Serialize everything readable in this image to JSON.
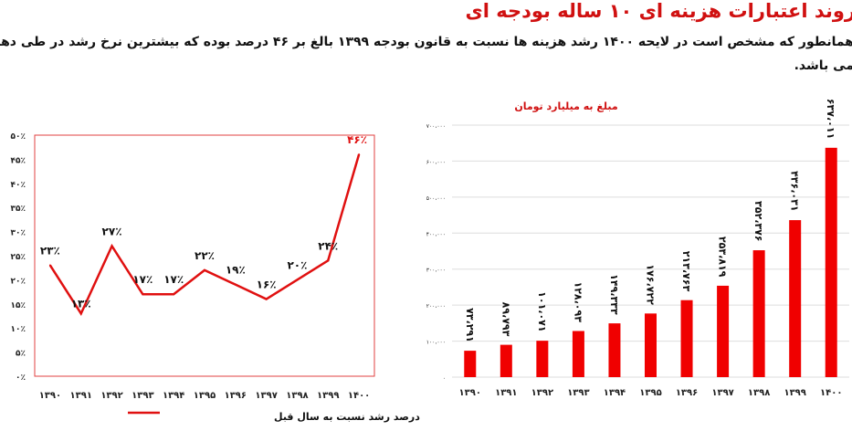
{
  "title": "روند اعتبارات هزینه ای ۱۰ ساله بودجه ای",
  "paragraph": [
    "همانطور که مشخص است در لایحه ۱۴۰۰ رشد هزینه ها نسبت به قانون بودجه ۱۳۹۹ بالغ بر ۴۶ درصد بوده که بیشترین نرخ رشد در طی دهه اخیر",
    "می باشد."
  ],
  "chart_data": [
    {
      "type": "line",
      "legend": "درصد رشد نسبت به سال قبل",
      "legend_position": "bottom",
      "categories": [
        "۱۳۹۰",
        "۱۳۹۱",
        "۱۳۹۲",
        "۱۳۹۳",
        "۱۳۹۴",
        "۱۳۹۵",
        "۱۳۹۶",
        "۱۳۹۷",
        "۱۳۹۸",
        "۱۳۹۹",
        "۱۴۰۰"
      ],
      "values": [
        23,
        13,
        27,
        17,
        17,
        22,
        19,
        16,
        20,
        24,
        46
      ],
      "data_labels": [
        "۲۳٪",
        "۱۳٪",
        "۲۷٪",
        "۱۷٪",
        "۱۷٪",
        "۲۲٪",
        "۱۹٪",
        "۱۶٪",
        "۲۰٪",
        "۲۴٪",
        "۴۶٪"
      ],
      "ylim": [
        0,
        50
      ],
      "yticks": [
        "۰٪",
        "۵٪",
        "۱۰٪",
        "۱۵٪",
        "۲۰٪",
        "۲۵٪",
        "۳۰٪",
        "۳۵٪",
        "۴۰٪",
        "۴۵٪",
        "۵۰٪"
      ],
      "color": "#e01010",
      "grid": false
    },
    {
      "type": "bar",
      "title": "مبلغ به میلیارد تومان",
      "categories": [
        "۱۳۹۰",
        "۱۳۹۱",
        "۱۳۹۲",
        "۱۳۹۳",
        "۱۳۹۴",
        "۱۳۹۵",
        "۱۳۹۶",
        "۱۳۹۷",
        "۱۳۹۸",
        "۱۳۹۹",
        "۱۴۰۰"
      ],
      "values": [
        73291,
        89793,
        101071,
        128093,
        149333,
        176722,
        213763,
        253819,
        352376,
        436031,
        637011
      ],
      "data_labels": [
        "۷۳،۲۹۱",
        "۸۹،۷۹۳",
        "۱۰۱،۰۷۱",
        "۱۲۸،۰۹۳",
        "۱۴۹،۳۳۳",
        "۱۷۶،۷۲۲",
        "۲۱۳،۷۶۳",
        "۲۵۳،۸۱۹",
        "۳۵۲،۳۷۶",
        "۴۳۶،۰۳۱",
        "۶۳۷،۰۱۱"
      ],
      "ylim": [
        0,
        700000
      ],
      "yticks": [
        "۰",
        "۱۰۰،۰۰۰",
        "۲۰۰،۰۰۰",
        "۳۰۰،۰۰۰",
        "۴۰۰،۰۰۰",
        "۵۰۰،۰۰۰",
        "۶۰۰،۰۰۰",
        "۷۰۰،۰۰۰"
      ],
      "color": "#f00000",
      "grid": true
    }
  ]
}
